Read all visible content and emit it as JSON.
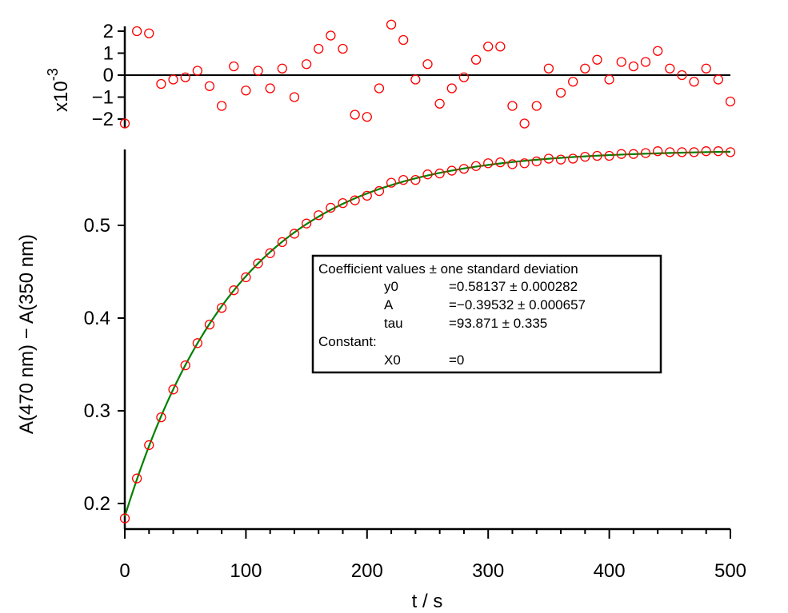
{
  "chart_data": [
    {
      "type": "scatter",
      "role": "residuals",
      "ylabel": "x10",
      "ylabel_exponent": "-3",
      "ylim": [
        -2.5,
        2.5
      ],
      "y_ticks": [
        -2,
        -1,
        0,
        1,
        2
      ],
      "y_tick_labels": [
        "−2",
        "−1",
        "0",
        "1",
        "2"
      ],
      "zero_line": true,
      "marker_color": "#ff0000",
      "series": [
        {
          "name": "residuals",
          "x": [
            0,
            10,
            20,
            30,
            40,
            50,
            60,
            70,
            80,
            90,
            100,
            110,
            120,
            130,
            140,
            150,
            160,
            170,
            180,
            190,
            200,
            210,
            220,
            230,
            240,
            250,
            260,
            270,
            280,
            290,
            300,
            310,
            320,
            330,
            340,
            350,
            360,
            370,
            380,
            390,
            400,
            410,
            420,
            430,
            440,
            450,
            460,
            470,
            480,
            490,
            500
          ],
          "y": [
            -2.2,
            2.0,
            1.9,
            -0.4,
            -0.2,
            -0.1,
            0.2,
            -0.5,
            -1.4,
            0.4,
            -0.7,
            0.2,
            -0.6,
            0.3,
            -1.0,
            0.5,
            1.2,
            1.8,
            1.2,
            -1.8,
            -1.9,
            -0.6,
            2.3,
            1.6,
            -0.2,
            0.5,
            -1.3,
            -0.6,
            -0.1,
            0.7,
            1.3,
            1.3,
            -1.4,
            -2.2,
            -1.4,
            0.3,
            -0.8,
            -0.3,
            0.3,
            0.7,
            -0.2,
            0.6,
            0.4,
            0.6,
            1.1,
            0.3,
            0.0,
            -0.3,
            0.3,
            -0.2,
            -1.2
          ]
        }
      ]
    },
    {
      "type": "scatter",
      "role": "main",
      "xlabel": "t / s",
      "ylabel": "A(470 nm) − A(350 nm)",
      "xlim": [
        0,
        500
      ],
      "ylim": [
        0.175,
        0.585
      ],
      "x_ticks": [
        0,
        100,
        200,
        300,
        400,
        500
      ],
      "y_ticks": [
        0.2,
        0.3,
        0.4,
        0.5
      ],
      "x_tick_labels": [
        "0",
        "100",
        "200",
        "300",
        "400",
        "500"
      ],
      "y_tick_labels": [
        "0.2",
        "0.3",
        "0.4",
        "0.5"
      ],
      "marker_color": "#ff0000",
      "fit_color": "#008000",
      "series": [
        {
          "name": "data",
          "x": [
            0,
            10,
            20,
            30,
            40,
            50,
            60,
            70,
            80,
            90,
            100,
            110,
            120,
            130,
            140,
            150,
            160,
            170,
            180,
            190,
            200,
            210,
            220,
            230,
            240,
            250,
            260,
            270,
            280,
            290,
            300,
            310,
            320,
            330,
            340,
            350,
            360,
            370,
            380,
            390,
            400,
            410,
            420,
            430,
            440,
            450,
            460,
            470,
            480,
            490,
            500
          ],
          "y": [
            0.184,
            0.227,
            0.263,
            0.293,
            0.323,
            0.349,
            0.373,
            0.393,
            0.411,
            0.43,
            0.444,
            0.459,
            0.47,
            0.482,
            0.491,
            0.502,
            0.511,
            0.519,
            0.524,
            0.527,
            0.532,
            0.537,
            0.546,
            0.549,
            0.549,
            0.555,
            0.556,
            0.559,
            0.561,
            0.564,
            0.567,
            0.568,
            0.566,
            0.567,
            0.569,
            0.572,
            0.571,
            0.572,
            0.574,
            0.575,
            0.575,
            0.577,
            0.577,
            0.578,
            0.58,
            0.579,
            0.579,
            0.579,
            0.58,
            0.58,
            0.579
          ]
        },
        {
          "name": "fit",
          "kind": "exponential",
          "params": {
            "y0": 0.58137,
            "A": -0.39532,
            "tau": 93.871,
            "X0": 0
          }
        }
      ],
      "legend": {
        "placement": "center-right",
        "title": "Coefficient values ± one standard deviation",
        "rows": [
          {
            "name": "y0",
            "value": "=0.58137 ± 0.000282"
          },
          {
            "name": "A",
            "value": "=−0.39532 ± 0.000657"
          },
          {
            "name": "tau",
            "value": "=93.871 ± 0.335"
          }
        ],
        "constant_label": "Constant:",
        "constants": [
          {
            "name": "X0",
            "value": "=0"
          }
        ]
      }
    }
  ]
}
